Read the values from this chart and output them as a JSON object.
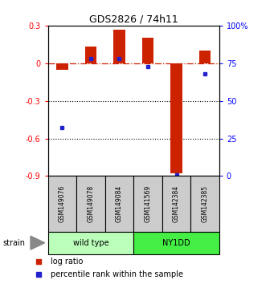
{
  "title": "GDS2826 / 74h11",
  "samples": [
    "GSM149076",
    "GSM149078",
    "GSM149084",
    "GSM141569",
    "GSM142384",
    "GSM142385"
  ],
  "log_ratio": [
    -0.05,
    0.13,
    0.27,
    0.2,
    -0.88,
    0.1
  ],
  "percentile_rank": [
    32,
    78,
    78,
    73,
    1,
    68
  ],
  "group_labels": [
    "wild type",
    "NY1DD"
  ],
  "group_colors": [
    "#bbffbb",
    "#44ee44"
  ],
  "group_ranges": [
    [
      0,
      2
    ],
    [
      3,
      5
    ]
  ],
  "ylim_left": [
    -0.9,
    0.3
  ],
  "ylim_right": [
    0,
    100
  ],
  "bar_color": "#cc2200",
  "point_color": "#2222cc",
  "zero_line_color": "#cc2200",
  "bg_color": "#ffffff",
  "left_tick_labels": [
    "0.3",
    "0",
    "-0.3",
    "-0.6",
    "-0.9"
  ],
  "left_tick_values": [
    0.3,
    0.0,
    -0.3,
    -0.6,
    -0.9
  ],
  "right_tick_labels": [
    "100%",
    "75",
    "50",
    "25",
    "0"
  ],
  "right_tick_values": [
    100,
    75,
    50,
    25,
    0
  ],
  "dotted_lines": [
    -0.3,
    -0.6
  ],
  "strain_label": "strain",
  "legend_log_ratio": "log ratio",
  "legend_percentile": "percentile rank within the sample",
  "sample_box_color": "#cccccc",
  "n_samples": 6
}
